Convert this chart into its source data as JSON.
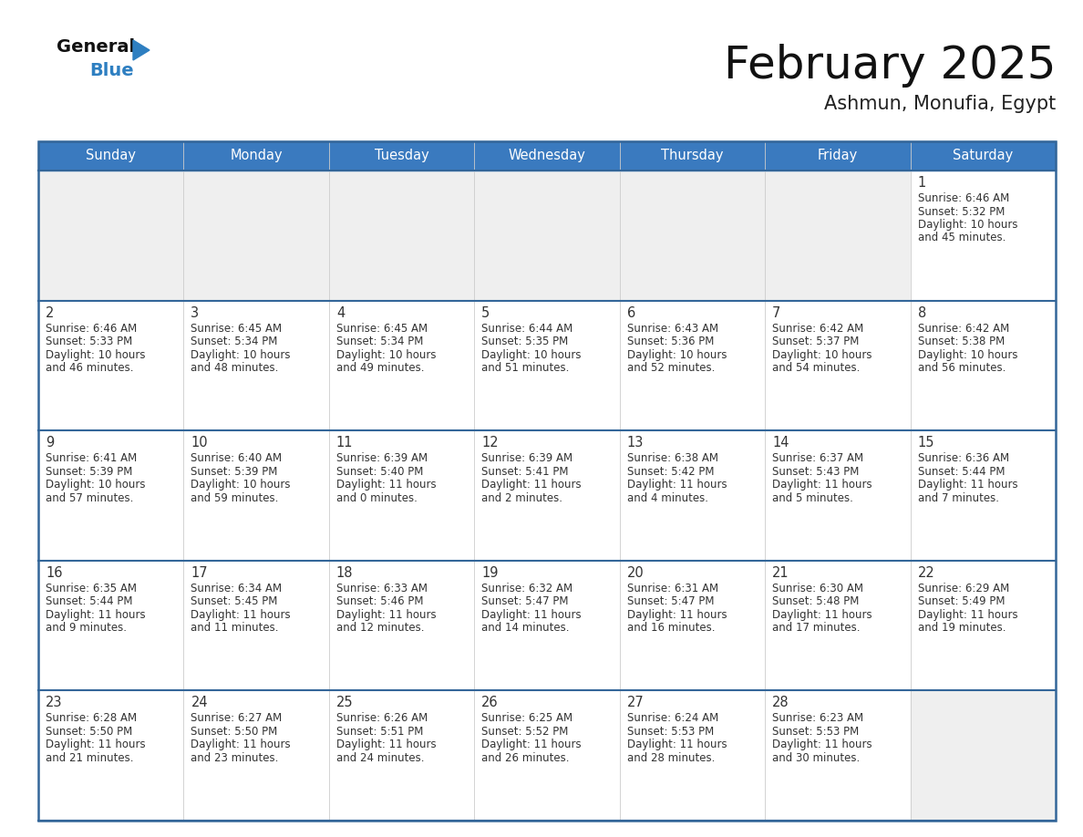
{
  "title": "February 2025",
  "subtitle": "Ashmun, Monufia, Egypt",
  "header_color": "#3a7abf",
  "header_text_color": "#ffffff",
  "day_names": [
    "Sunday",
    "Monday",
    "Tuesday",
    "Wednesday",
    "Thursday",
    "Friday",
    "Saturday"
  ],
  "background_color": "#ffffff",
  "empty_cell_bg": "#efefef",
  "filled_cell_bg": "#ffffff",
  "border_color": "#336699",
  "row_divider_color": "#336699",
  "text_color": "#333333",
  "day_num_color": "#333333",
  "logo_color1": "#111111",
  "logo_color2": "#2e7fc1",
  "calendar_data": [
    [
      null,
      null,
      null,
      null,
      null,
      null,
      {
        "day": 1,
        "sunrise": "6:46 AM",
        "sunset": "5:32 PM",
        "daylight_h": "10 hours",
        "daylight_m": "and 45 minutes."
      }
    ],
    [
      {
        "day": 2,
        "sunrise": "6:46 AM",
        "sunset": "5:33 PM",
        "daylight_h": "10 hours",
        "daylight_m": "and 46 minutes."
      },
      {
        "day": 3,
        "sunrise": "6:45 AM",
        "sunset": "5:34 PM",
        "daylight_h": "10 hours",
        "daylight_m": "and 48 minutes."
      },
      {
        "day": 4,
        "sunrise": "6:45 AM",
        "sunset": "5:34 PM",
        "daylight_h": "10 hours",
        "daylight_m": "and 49 minutes."
      },
      {
        "day": 5,
        "sunrise": "6:44 AM",
        "sunset": "5:35 PM",
        "daylight_h": "10 hours",
        "daylight_m": "and 51 minutes."
      },
      {
        "day": 6,
        "sunrise": "6:43 AM",
        "sunset": "5:36 PM",
        "daylight_h": "10 hours",
        "daylight_m": "and 52 minutes."
      },
      {
        "day": 7,
        "sunrise": "6:42 AM",
        "sunset": "5:37 PM",
        "daylight_h": "10 hours",
        "daylight_m": "and 54 minutes."
      },
      {
        "day": 8,
        "sunrise": "6:42 AM",
        "sunset": "5:38 PM",
        "daylight_h": "10 hours",
        "daylight_m": "and 56 minutes."
      }
    ],
    [
      {
        "day": 9,
        "sunrise": "6:41 AM",
        "sunset": "5:39 PM",
        "daylight_h": "10 hours",
        "daylight_m": "and 57 minutes."
      },
      {
        "day": 10,
        "sunrise": "6:40 AM",
        "sunset": "5:39 PM",
        "daylight_h": "10 hours",
        "daylight_m": "and 59 minutes."
      },
      {
        "day": 11,
        "sunrise": "6:39 AM",
        "sunset": "5:40 PM",
        "daylight_h": "11 hours",
        "daylight_m": "and 0 minutes."
      },
      {
        "day": 12,
        "sunrise": "6:39 AM",
        "sunset": "5:41 PM",
        "daylight_h": "11 hours",
        "daylight_m": "and 2 minutes."
      },
      {
        "day": 13,
        "sunrise": "6:38 AM",
        "sunset": "5:42 PM",
        "daylight_h": "11 hours",
        "daylight_m": "and 4 minutes."
      },
      {
        "day": 14,
        "sunrise": "6:37 AM",
        "sunset": "5:43 PM",
        "daylight_h": "11 hours",
        "daylight_m": "and 5 minutes."
      },
      {
        "day": 15,
        "sunrise": "6:36 AM",
        "sunset": "5:44 PM",
        "daylight_h": "11 hours",
        "daylight_m": "and 7 minutes."
      }
    ],
    [
      {
        "day": 16,
        "sunrise": "6:35 AM",
        "sunset": "5:44 PM",
        "daylight_h": "11 hours",
        "daylight_m": "and 9 minutes."
      },
      {
        "day": 17,
        "sunrise": "6:34 AM",
        "sunset": "5:45 PM",
        "daylight_h": "11 hours",
        "daylight_m": "and 11 minutes."
      },
      {
        "day": 18,
        "sunrise": "6:33 AM",
        "sunset": "5:46 PM",
        "daylight_h": "11 hours",
        "daylight_m": "and 12 minutes."
      },
      {
        "day": 19,
        "sunrise": "6:32 AM",
        "sunset": "5:47 PM",
        "daylight_h": "11 hours",
        "daylight_m": "and 14 minutes."
      },
      {
        "day": 20,
        "sunrise": "6:31 AM",
        "sunset": "5:47 PM",
        "daylight_h": "11 hours",
        "daylight_m": "and 16 minutes."
      },
      {
        "day": 21,
        "sunrise": "6:30 AM",
        "sunset": "5:48 PM",
        "daylight_h": "11 hours",
        "daylight_m": "and 17 minutes."
      },
      {
        "day": 22,
        "sunrise": "6:29 AM",
        "sunset": "5:49 PM",
        "daylight_h": "11 hours",
        "daylight_m": "and 19 minutes."
      }
    ],
    [
      {
        "day": 23,
        "sunrise": "6:28 AM",
        "sunset": "5:50 PM",
        "daylight_h": "11 hours",
        "daylight_m": "and 21 minutes."
      },
      {
        "day": 24,
        "sunrise": "6:27 AM",
        "sunset": "5:50 PM",
        "daylight_h": "11 hours",
        "daylight_m": "and 23 minutes."
      },
      {
        "day": 25,
        "sunrise": "6:26 AM",
        "sunset": "5:51 PM",
        "daylight_h": "11 hours",
        "daylight_m": "and 24 minutes."
      },
      {
        "day": 26,
        "sunrise": "6:25 AM",
        "sunset": "5:52 PM",
        "daylight_h": "11 hours",
        "daylight_m": "and 26 minutes."
      },
      {
        "day": 27,
        "sunrise": "6:24 AM",
        "sunset": "5:53 PM",
        "daylight_h": "11 hours",
        "daylight_m": "and 28 minutes."
      },
      {
        "day": 28,
        "sunrise": "6:23 AM",
        "sunset": "5:53 PM",
        "daylight_h": "11 hours",
        "daylight_m": "and 30 minutes."
      },
      null
    ]
  ]
}
